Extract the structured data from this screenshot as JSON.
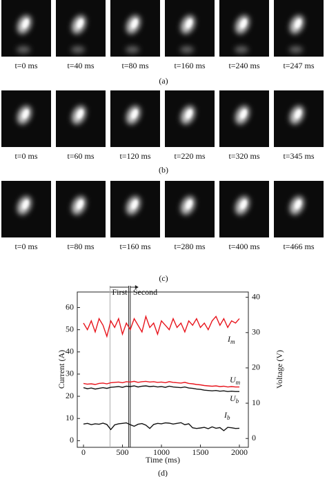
{
  "panels": [
    {
      "caption": "(a)",
      "frames": [
        "t=0 ms",
        "t=40 ms",
        "t=80 ms",
        "t=160 ms",
        "t=240 ms",
        "t=247 ms"
      ]
    },
    {
      "caption": "(b)",
      "frames": [
        "t=0 ms",
        "t=60 ms",
        "t=120 ms",
        "t=220 ms",
        "t=320 ms",
        "t=345 ms"
      ]
    },
    {
      "caption": "(c)",
      "frames": [
        "t=0 ms",
        "t=80 ms",
        "t=160 ms",
        "t=280 ms",
        "t=400 ms",
        "t=466 ms"
      ]
    }
  ],
  "chart_data": {
    "type": "line",
    "caption": "(d)",
    "x_label": "Time (ms)",
    "y_label": "Current (A)",
    "y2_label": "Voltage (V)",
    "xlim": [
      -80,
      2115
    ],
    "xticks": [
      0,
      500,
      1000,
      1500,
      2000
    ],
    "ylim": [
      -3,
      67
    ],
    "yticks": [
      0,
      10,
      20,
      30,
      40,
      50,
      60
    ],
    "y2lim": [
      -2.5,
      41.5
    ],
    "y2ticks": [
      0,
      10,
      20,
      30,
      40
    ],
    "phases": [
      {
        "label": "First",
        "start": 340,
        "end": 580
      },
      {
        "label": "Second",
        "start": 600
      }
    ],
    "x": [
      0,
      50,
      100,
      150,
      200,
      250,
      300,
      350,
      400,
      450,
      500,
      550,
      600,
      650,
      700,
      750,
      800,
      850,
      900,
      950,
      1000,
      1050,
      1100,
      1150,
      1200,
      1250,
      1300,
      1350,
      1400,
      1450,
      1500,
      1550,
      1600,
      1650,
      1700,
      1750,
      1800,
      1850,
      1900,
      1950,
      2000
    ],
    "series": [
      {
        "name": "Im",
        "color": "#e8141c",
        "axis": "y",
        "values": [
          53,
          50,
          54,
          49,
          55,
          52,
          47,
          54,
          51,
          55,
          48,
          53,
          50,
          55,
          52,
          49,
          56,
          51,
          53,
          48,
          54,
          52,
          50,
          55,
          51,
          53,
          49,
          54,
          52,
          55,
          51,
          53,
          50,
          54,
          56,
          52,
          55,
          51,
          54,
          53,
          55
        ]
      },
      {
        "name": "Um",
        "color": "#e8141c",
        "axis": "y2",
        "values": [
          15.6,
          15.4,
          15.5,
          15.3,
          15.6,
          15.7,
          15.5,
          15.8,
          15.9,
          16.0,
          15.8,
          16.1,
          16.0,
          16.2,
          15.9,
          16.1,
          16.2,
          16.0,
          16.1,
          15.9,
          16.0,
          15.8,
          16.1,
          15.9,
          15.8,
          15.7,
          15.9,
          15.6,
          15.5,
          15.3,
          15.2,
          15.0,
          14.9,
          14.8,
          14.9,
          14.7,
          14.8,
          14.6,
          14.7,
          14.6,
          14.6
        ]
      },
      {
        "name": "Ub",
        "color": "#111111",
        "axis": "y2",
        "values": [
          14.4,
          14.1,
          14.3,
          14.0,
          14.2,
          14.4,
          14.2,
          14.5,
          14.6,
          14.7,
          14.5,
          14.8,
          14.7,
          14.9,
          14.6,
          14.8,
          14.9,
          14.7,
          14.8,
          14.6,
          14.7,
          14.5,
          14.8,
          14.6,
          14.5,
          14.4,
          14.6,
          14.3,
          14.2,
          14.0,
          13.9,
          13.7,
          13.6,
          13.5,
          13.6,
          13.4,
          13.5,
          13.3,
          13.4,
          13.3,
          13.3
        ]
      },
      {
        "name": "Ib",
        "color": "#111111",
        "axis": "y",
        "values": [
          7.5,
          7.8,
          7.2,
          7.6,
          7.4,
          7.9,
          7.3,
          5.0,
          7.1,
          7.6,
          7.8,
          8.0,
          7.2,
          6.5,
          7.4,
          7.7,
          7.0,
          5.5,
          7.3,
          7.8,
          7.6,
          8.0,
          7.9,
          7.5,
          7.8,
          8.1,
          7.2,
          7.6,
          5.8,
          5.5,
          5.7,
          6.0,
          5.4,
          6.2,
          5.6,
          5.9,
          4.5,
          6.0,
          5.8,
          5.5,
          5.6
        ]
      }
    ]
  }
}
